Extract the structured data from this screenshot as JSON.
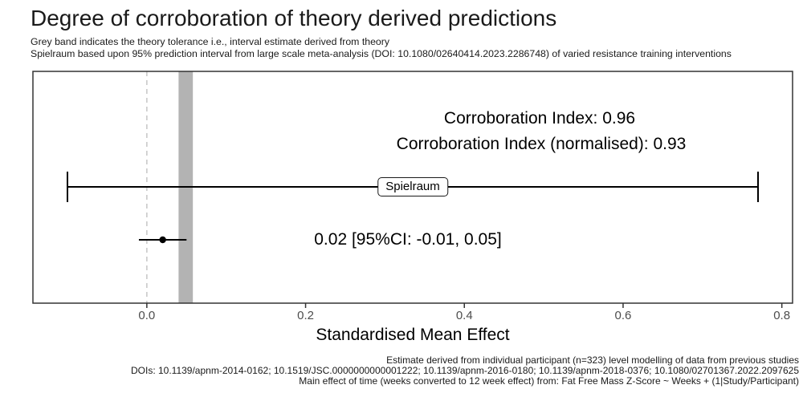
{
  "chart_data": {
    "type": "pointrange",
    "title": "Degree of corroboration of theory derived predictions",
    "subtitle_lines": [
      "Grey band indicates the theory tolerance i.e., interval estimate derived from theory",
      "Spielraum based upon 95% prediction interval from large scale meta-analysis (DOI: 10.1080/02640414.2023.2286748) of varied resistance training interventions"
    ],
    "xlabel": "Standardised Mean Effect",
    "x_ticks": [
      0.0,
      0.2,
      0.4,
      0.6,
      0.8
    ],
    "x_tick_labels": [
      "0.0",
      "0.2",
      "0.4",
      "0.6",
      "0.8"
    ],
    "xlim": [
      -0.1435,
      0.8135
    ],
    "grid": false,
    "legend": "none",
    "reference_line_x": 0.0,
    "tolerance_band": {
      "lower": 0.04,
      "upper": 0.058
    },
    "spielraum": {
      "label": "Spielraum",
      "lower": -0.1,
      "upper": 0.77
    },
    "estimate": {
      "mean": 0.02,
      "ci_lower": -0.01,
      "ci_upper": 0.05,
      "label": "0.02 [95%CI: -0.01, 0.05]"
    },
    "corroboration_index": 0.96,
    "corroboration_index_normalised": 0.93,
    "annotations": [
      "Corroboration Index: 0.96",
      "Corroboration Index (normalised): 0.93"
    ],
    "caption_lines": [
      "Estimate derived from individual participant (n=323) level modelling of data from previous studies",
      "DOIs: 10.1139/apnm-2014-0162; 10.1519/JSC.0000000000001222; 10.1139/apnm-2016-0180; 10.1139/apnm-2018-0376; 10.1080/02701367.2022.2097625",
      "Main effect of time (weeks converted to 12 week effect) from: Fat Free Mass Z-Score ~ Weeks + (1|Study/Participant)"
    ],
    "colors": {
      "band": "#b3b3b3",
      "reference_line": "#c9c9c9",
      "panel_border": "#333333",
      "data": "#000000",
      "tick_label": "#4d4d4d"
    }
  }
}
